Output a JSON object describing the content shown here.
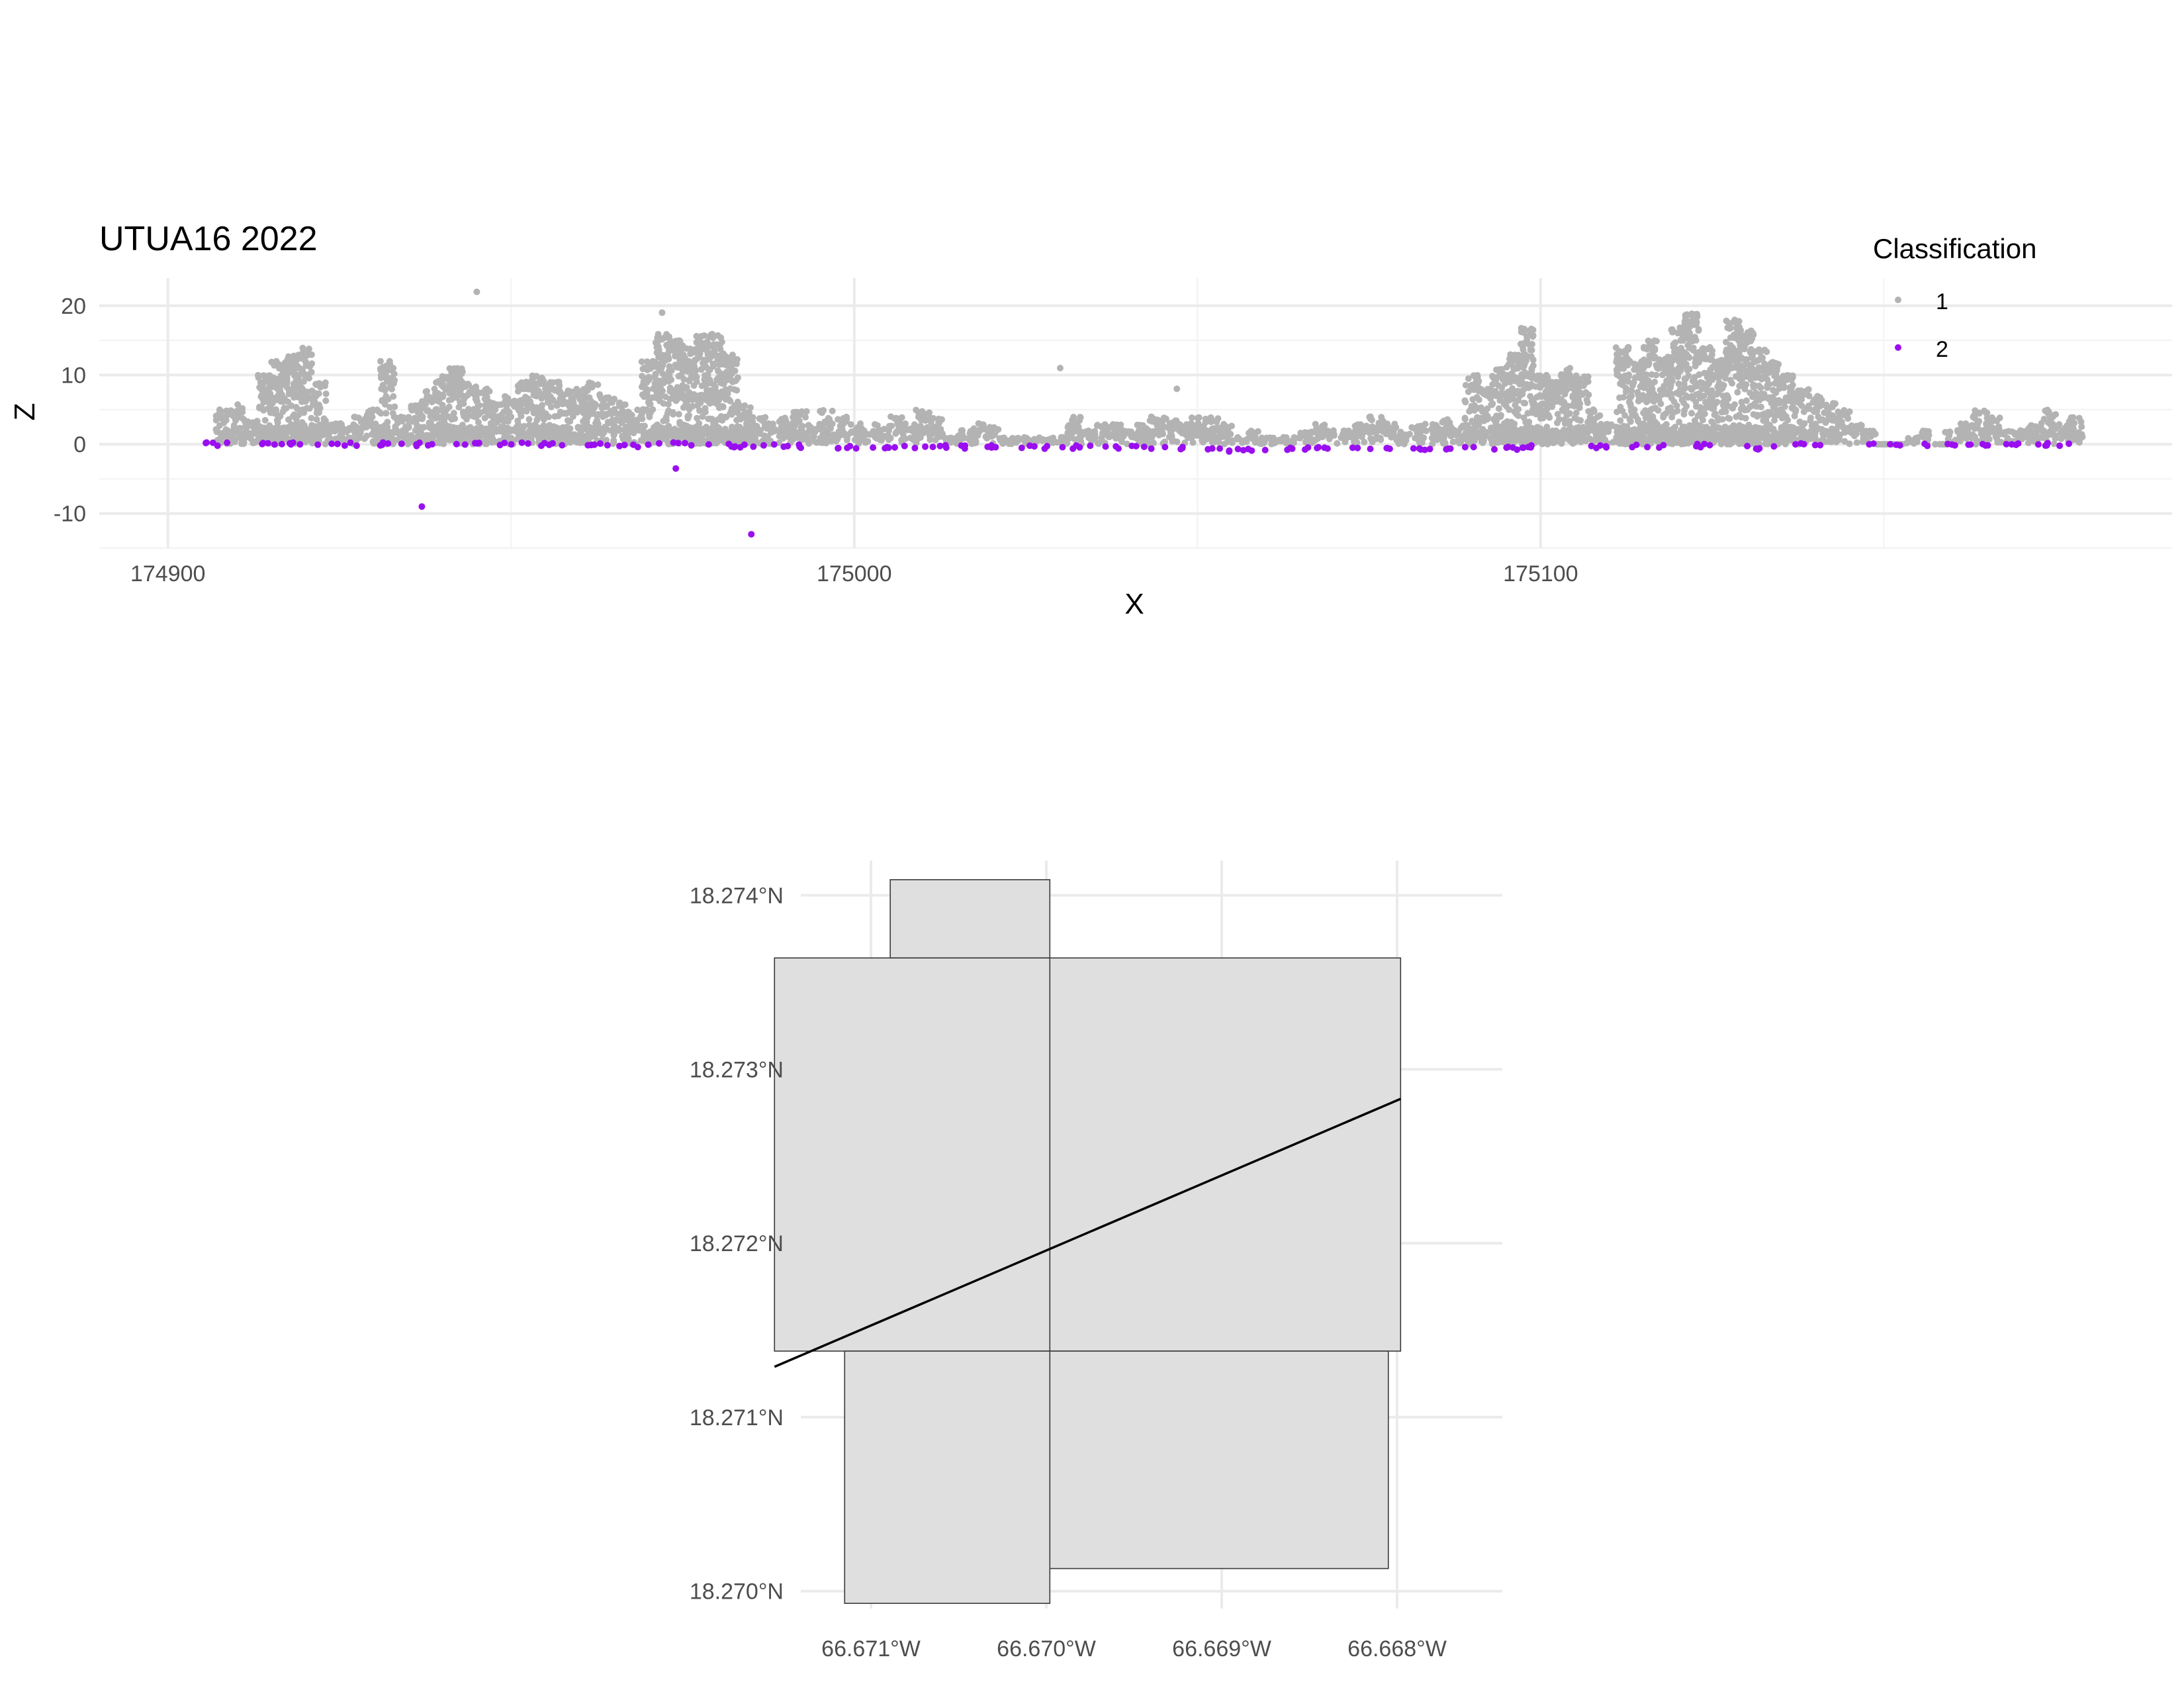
{
  "chart_data": [
    {
      "type": "scatter",
      "title": "UTUA16 2022",
      "xlabel": "X",
      "ylabel": "Z",
      "xlim": [
        174890,
        175192
      ],
      "ylim": [
        -15,
        24
      ],
      "x_ticks": [
        174900,
        175000,
        175100
      ],
      "x_tick_labels": [
        "174900",
        "175000",
        "175100"
      ],
      "y_ticks": [
        -10,
        0,
        10,
        20
      ],
      "y_tick_labels": [
        "-10",
        "0",
        "10",
        "20"
      ],
      "grid": true,
      "legend": {
        "title": "Classification",
        "position": "top-right",
        "entries": [
          {
            "label": "1",
            "color": "#b3b3b3"
          },
          {
            "label": "2",
            "color": "#9a0ff0"
          }
        ]
      },
      "series": [
        {
          "name": "1",
          "color": "#b3b3b3",
          "x": [
            174908,
            174910,
            174912,
            174914,
            174916,
            174918,
            174920,
            174922,
            174924,
            174926,
            174928,
            174930,
            174932,
            174934,
            174936,
            174938,
            174940,
            174942,
            174944,
            174946,
            174948,
            174950,
            174952,
            174954,
            174956,
            174958,
            174960,
            174962,
            174964,
            174966,
            174968,
            174970,
            174972,
            174974,
            174976,
            174978,
            174980,
            174982,
            174984,
            174986,
            174988,
            174990,
            174992,
            174994,
            174996,
            174998,
            175000,
            175002,
            175004,
            175006,
            175008,
            175010,
            175012,
            175014,
            175016,
            175018,
            175020,
            175022,
            175024,
            175026,
            175028,
            175030,
            175032,
            175034,
            175036,
            175038,
            175040,
            175042,
            175044,
            175046,
            175048,
            175050,
            175052,
            175054,
            175056,
            175058,
            175060,
            175062,
            175064,
            175066,
            175068,
            175070,
            175072,
            175074,
            175076,
            175078,
            175080,
            175082,
            175084,
            175086,
            175088,
            175090,
            175092,
            175094,
            175096,
            175098,
            175100,
            175102,
            175104,
            175106,
            175108,
            175110,
            175112,
            175114,
            175116,
            175118,
            175120,
            175122,
            175124,
            175126,
            175128,
            175130,
            175132,
            175134,
            175136,
            175138,
            175140,
            175142,
            175144,
            175146,
            175148,
            175150,
            175152,
            175154,
            175156,
            175158,
            175160,
            175162,
            175164,
            175166,
            175168,
            175170,
            175172,
            175174,
            175176,
            175178
          ],
          "y": [
            5,
            6,
            4,
            10,
            12,
            13,
            14,
            9,
            3,
            3,
            4,
            5,
            12,
            4,
            6,
            8,
            10,
            11,
            9,
            8,
            6,
            7,
            9,
            10,
            9,
            8,
            8,
            9,
            7,
            6,
            5,
            12,
            16,
            15,
            14,
            16,
            16,
            13,
            6,
            4,
            3,
            4,
            5,
            3,
            5,
            4,
            3,
            2,
            3,
            4,
            3,
            5,
            4,
            1,
            2,
            3,
            3,
            1,
            1,
            1,
            1,
            1,
            4,
            2,
            3,
            3,
            2,
            3,
            4,
            4,
            3,
            4,
            4,
            3,
            1,
            2,
            1,
            1,
            1,
            2,
            3,
            2,
            2,
            3,
            4,
            3,
            2,
            3,
            3,
            4,
            3,
            10,
            8,
            11,
            13,
            17,
            10,
            9,
            11,
            10,
            5,
            3,
            14,
            12,
            15,
            13,
            17,
            19,
            14,
            13,
            18,
            17,
            14,
            12,
            10,
            8,
            7,
            6,
            5,
            3,
            2,
            0,
            0,
            1,
            2,
            0,
            2,
            3,
            5,
            4,
            2,
            2,
            3,
            5,
            3,
            4
          ],
          "outliers": [
            [
              174945,
              22
            ],
            [
              174972,
              19
            ],
            [
              175030,
              11
            ],
            [
              175047,
              8
            ],
            [
              175114,
              1
            ]
          ]
        },
        {
          "name": "2",
          "color": "#9a0ff0",
          "x": [
            174908,
            174914,
            174920,
            174926,
            174932,
            174938,
            174944,
            174950,
            174956,
            174962,
            174968,
            174974,
            174980,
            174986,
            174992,
            174998,
            175004,
            175010,
            175016,
            175022,
            175028,
            175034,
            175040,
            175046,
            175052,
            175058,
            175064,
            175070,
            175076,
            175082,
            175088,
            175094,
            175100,
            175108,
            175116,
            175124,
            175132,
            175138,
            175150,
            175158,
            175164,
            175170,
            175176
          ],
          "y": [
            0,
            0,
            0,
            0,
            0,
            0,
            0,
            0,
            0,
            0,
            -0.2,
            0,
            -0.2,
            -0.2,
            -0.3,
            -0.4,
            -0.4,
            -0.4,
            -0.4,
            -0.4,
            -0.4,
            -0.4,
            -0.4,
            -0.6,
            -0.8,
            -0.8,
            -0.6,
            -0.6,
            -0.5,
            -0.6,
            -0.6,
            -0.6,
            -0.4,
            -0.3,
            -0.3,
            -0.2,
            -0.5,
            0,
            0,
            0,
            0,
            0,
            0
          ],
          "outliers": [
            [
              174937,
              -9
            ],
            [
              174974,
              -3.5
            ],
            [
              174985,
              -13
            ]
          ]
        }
      ]
    },
    {
      "type": "map",
      "xlim": [
        -66.6714,
        -66.6674
      ],
      "ylim": [
        18.2699,
        18.2742
      ],
      "x_ticks": [
        -66.671,
        -66.67,
        -66.669,
        -66.668
      ],
      "x_tick_labels": [
        "66.671°W",
        "66.670°W",
        "66.669°W",
        "66.668°W"
      ],
      "y_ticks": [
        18.274,
        18.273,
        18.272,
        18.271,
        18.27
      ],
      "y_tick_labels": [
        "18.274°N",
        "18.273°N",
        "18.272°N",
        "18.271°N",
        "18.270°N"
      ],
      "grid": true,
      "polygon_fill": "#dfdfdf",
      "polygons": [
        {
          "lon": [
            -66.67089,
            -66.66998
          ],
          "lat": [
            18.27364,
            18.27409
          ]
        },
        {
          "lon": [
            -66.67155,
            -66.66998
          ],
          "lat": [
            18.27138,
            18.27364
          ]
        },
        {
          "lon": [
            -66.66998,
            -66.66798
          ],
          "lat": [
            18.27138,
            18.27364
          ]
        },
        {
          "lon": [
            -66.67115,
            -66.66998
          ],
          "lat": [
            18.26993,
            18.27138
          ]
        },
        {
          "lon": [
            -66.66998,
            -66.66805
          ],
          "lat": [
            18.27013,
            18.27138
          ]
        }
      ],
      "transect": {
        "lon": [
          -66.67155,
          -66.66798
        ],
        "lat": [
          18.27129,
          18.27283
        ]
      }
    }
  ]
}
